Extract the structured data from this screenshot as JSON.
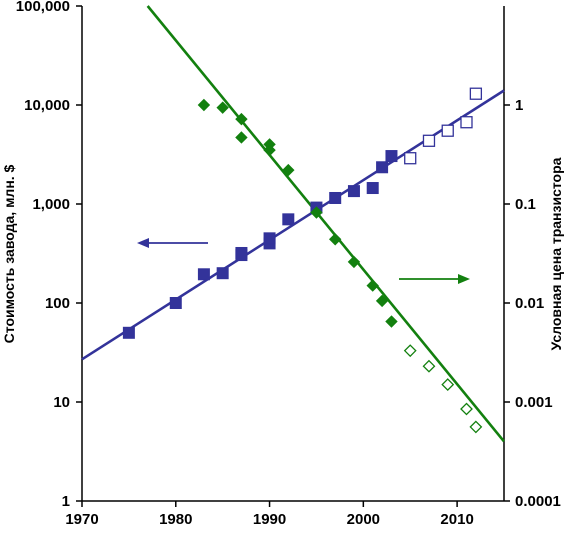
{
  "chart_data": {
    "type": "scatter",
    "title": "",
    "xlabel": "",
    "ylabel_left": "Стоимость завода, млн. $",
    "ylabel_right": "Условная цена транзистора",
    "xlim": [
      1970,
      2015
    ],
    "ylim_left": [
      1,
      100000
    ],
    "ylim_right": [
      0.0001,
      10
    ],
    "yscale": "log",
    "grid": false,
    "x_ticks": [
      "1970",
      "1980",
      "1990",
      "2000",
      "2010"
    ],
    "y_left_ticks": [
      "1",
      "10",
      "100",
      "1,000",
      "10,000",
      "100,000"
    ],
    "y_right_ticks": [
      "0.0001",
      "0.001",
      "0.01",
      "0.1",
      "1"
    ],
    "colors": {
      "fab_cost": "#33339a",
      "transistor_price": "#13800f"
    },
    "series": [
      {
        "axis": "left",
        "marker": "square",
        "filled": true,
        "points": [
          [
            1975,
            50
          ],
          [
            1980,
            100
          ],
          [
            1983,
            195
          ],
          [
            1985,
            200
          ],
          [
            1987,
            305
          ],
          [
            1987,
            320
          ],
          [
            1990,
            400
          ],
          [
            1990,
            450
          ],
          [
            1992,
            700
          ],
          [
            1995,
            920
          ],
          [
            1997,
            1150
          ],
          [
            1999,
            1350
          ],
          [
            2001,
            1450
          ],
          [
            2002,
            2350
          ],
          [
            2003,
            3050
          ]
        ]
      },
      {
        "axis": "left",
        "marker": "square",
        "filled": false,
        "points": [
          [
            2005,
            2900
          ],
          [
            2007,
            4350
          ],
          [
            2009,
            5500
          ],
          [
            2011,
            6700
          ],
          [
            2012,
            13000
          ]
        ]
      },
      {
        "axis": "right",
        "marker": "diamond",
        "filled": true,
        "points": [
          [
            1983,
            1
          ],
          [
            1985,
            0.94
          ],
          [
            1987,
            0.72
          ],
          [
            1987,
            0.47
          ],
          [
            1990,
            0.4
          ],
          [
            1990,
            0.35
          ],
          [
            1992,
            0.22
          ],
          [
            1995,
            0.082
          ],
          [
            1997,
            0.044
          ],
          [
            1999,
            0.026
          ],
          [
            2001,
            0.015
          ],
          [
            2002,
            0.0105
          ],
          [
            2003,
            0.0065
          ]
        ]
      },
      {
        "axis": "right",
        "marker": "diamond",
        "filled": false,
        "points": [
          [
            2005,
            0.0033
          ],
          [
            2007,
            0.0023
          ],
          [
            2009,
            0.0015
          ],
          [
            2011,
            0.00085
          ],
          [
            2012,
            0.00056
          ]
        ]
      }
    ],
    "trend_lines": [
      {
        "axis": "left",
        "from": [
          1970,
          27
        ],
        "to": [
          2015,
          14000
        ]
      },
      {
        "axis": "right",
        "from": [
          1977,
          10
        ],
        "to": [
          2015,
          0.0004
        ]
      }
    ],
    "annotations": [
      {
        "type": "arrow",
        "direction": "left",
        "series": 0
      },
      {
        "type": "arrow",
        "direction": "right",
        "series": 2
      }
    ]
  }
}
